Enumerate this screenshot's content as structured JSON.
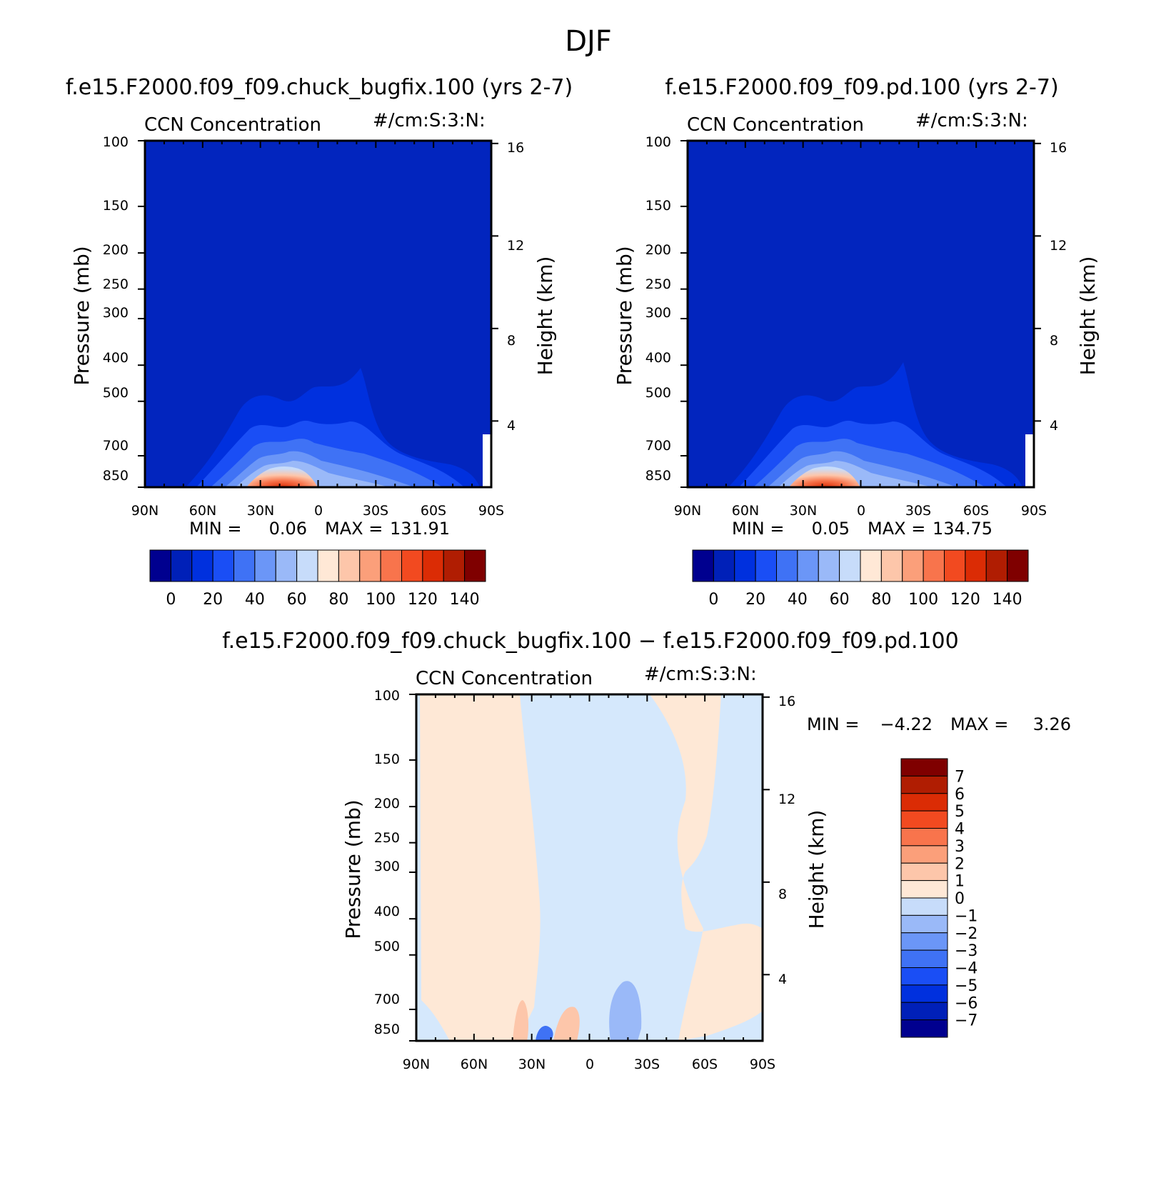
{
  "figure": {
    "title": "DJF"
  },
  "colors": {
    "cmap14": [
      "#00008f",
      "#0020b8",
      "#0030de",
      "#1a4ef5",
      "#3f72f5",
      "#6b96f7",
      "#9ab9f8",
      "#c7dcfa",
      "#ffe8d6",
      "#fdc6aa",
      "#fb9f7a",
      "#f8744c",
      "#f24a20",
      "#db2c05",
      "#b01d02",
      "#7f0000"
    ],
    "base_fill": "#0225be",
    "diff_neg1": "#d5e8fc",
    "diff_pos1": "#fee8d6"
  },
  "chart_data": [
    {
      "type": "heatmap",
      "title": "f.e15.F2000.f09_f09.chuck_bugfix.100 (yrs 2-7)",
      "left_label": "CCN Concentration",
      "right_label": "#/cm:S:3:N:",
      "xlabel": "",
      "ylabel": "Pressure (mb)",
      "ylabel_right": "Height (km)",
      "x_ticks": [
        "90N",
        "60N",
        "30N",
        "0",
        "30S",
        "60S",
        "90S"
      ],
      "y_ticks": [
        "100",
        "150",
        "200",
        "250",
        "300",
        "400",
        "500",
        "700",
        "850"
      ],
      "y_ticks_right": [
        "16",
        "12",
        "8",
        "4"
      ],
      "y_scale": "log",
      "ylim": [
        100,
        850
      ],
      "stats": {
        "min_label": "MIN =",
        "min": "0.06",
        "max_label": "MAX =",
        "max": "131.91"
      },
      "levels": [
        0,
        10,
        20,
        30,
        40,
        50,
        60,
        70,
        80,
        90,
        100,
        110,
        120,
        130,
        140
      ],
      "colorbar_labels": [
        "0",
        "20",
        "40",
        "60",
        "80",
        "100",
        "120",
        "140"
      ]
    },
    {
      "type": "heatmap",
      "title": "f.e15.F2000.f09_f09.pd.100 (yrs 2-7)",
      "left_label": "CCN Concentration",
      "right_label": "#/cm:S:3:N:",
      "xlabel": "",
      "ylabel": "Pressure (mb)",
      "ylabel_right": "Height (km)",
      "x_ticks": [
        "90N",
        "60N",
        "30N",
        "0",
        "30S",
        "60S",
        "90S"
      ],
      "y_ticks": [
        "100",
        "150",
        "200",
        "250",
        "300",
        "400",
        "500",
        "700",
        "850"
      ],
      "y_ticks_right": [
        "16",
        "12",
        "8",
        "4"
      ],
      "y_scale": "log",
      "ylim": [
        100,
        850
      ],
      "stats": {
        "min_label": "MIN =",
        "min": "0.05",
        "max_label": "MAX =",
        "max": "134.75"
      },
      "levels": [
        0,
        10,
        20,
        30,
        40,
        50,
        60,
        70,
        80,
        90,
        100,
        110,
        120,
        130,
        140
      ],
      "colorbar_labels": [
        "0",
        "20",
        "40",
        "60",
        "80",
        "100",
        "120",
        "140"
      ]
    },
    {
      "type": "heatmap",
      "title": "f.e15.F2000.f09_f09.chuck_bugfix.100 − f.e15.F2000.f09_f09.pd.100",
      "left_label": "CCN Concentration",
      "right_label": "#/cm:S:3:N:",
      "xlabel": "",
      "ylabel": "Pressure (mb)",
      "ylabel_right": "Height (km)",
      "x_ticks": [
        "90N",
        "60N",
        "30N",
        "0",
        "30S",
        "60S",
        "90S"
      ],
      "y_ticks": [
        "100",
        "150",
        "200",
        "250",
        "300",
        "400",
        "500",
        "700",
        "850"
      ],
      "y_ticks_right": [
        "16",
        "12",
        "8",
        "4"
      ],
      "y_scale": "log",
      "ylim": [
        100,
        850
      ],
      "stats": {
        "min_label": "MIN =",
        "min": "−4.22",
        "max_label": "MAX =",
        "max": "3.26"
      },
      "levels": [
        -7,
        -6,
        -5,
        -4,
        -3,
        -2,
        -1,
        0,
        1,
        2,
        3,
        4,
        5,
        6,
        7
      ],
      "colorbar_labels": [
        "7",
        "6",
        "5",
        "4",
        "3",
        "2",
        "1",
        "0",
        "−1",
        "−2",
        "−3",
        "−4",
        "−5",
        "−6",
        "−7"
      ]
    }
  ]
}
